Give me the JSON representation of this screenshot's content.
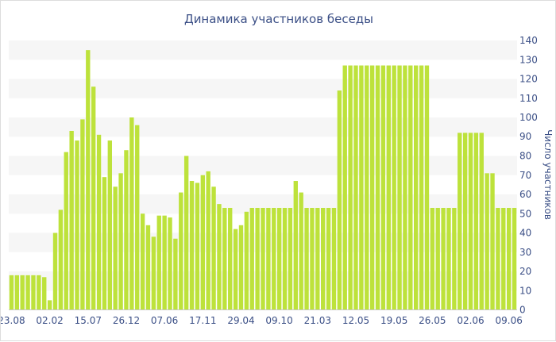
{
  "chart_data": {
    "type": "bar",
    "title": "Динамика участников беседы",
    "ylabel": "Число участников",
    "xlabel": "",
    "y_axis_side": "right",
    "ylim": [
      0,
      140
    ],
    "yticks": [
      0,
      10,
      20,
      30,
      40,
      50,
      60,
      70,
      80,
      90,
      100,
      110,
      120,
      130,
      140
    ],
    "grid": "alternating horizontal bands",
    "bar_color": "#bde23b",
    "band_color": "#f6f6f6",
    "text_color": "#3b4f86",
    "x_tick_labels": [
      {
        "label": "23.08",
        "index": 0
      },
      {
        "label": "02.02",
        "index": 7
      },
      {
        "label": "15.07",
        "index": 14
      },
      {
        "label": "26.12",
        "index": 21
      },
      {
        "label": "07.06",
        "index": 28
      },
      {
        "label": "17.11",
        "index": 35
      },
      {
        "label": "29.04",
        "index": 42
      },
      {
        "label": "09.10",
        "index": 49
      },
      {
        "label": "21.03",
        "index": 56
      },
      {
        "label": "12.05",
        "index": 63
      },
      {
        "label": "19.05",
        "index": 70
      },
      {
        "label": "26.05",
        "index": 77
      },
      {
        "label": "02.06",
        "index": 84
      },
      {
        "label": "09.06",
        "index": 91
      }
    ],
    "values": [
      18,
      18,
      18,
      18,
      18,
      18,
      17,
      5,
      40,
      52,
      82,
      93,
      88,
      99,
      135,
      116,
      91,
      69,
      88,
      64,
      71,
      83,
      100,
      96,
      50,
      44,
      38,
      49,
      49,
      48,
      37,
      61,
      80,
      67,
      66,
      70,
      72,
      64,
      55,
      53,
      53,
      42,
      44,
      51,
      53,
      53,
      53,
      53,
      53,
      53,
      53,
      53,
      67,
      61,
      53,
      53,
      53,
      53,
      53,
      53,
      114,
      127,
      127,
      127,
      127,
      127,
      127,
      127,
      127,
      127,
      127,
      127,
      127,
      127,
      127,
      127,
      127,
      53,
      53,
      53,
      53,
      53,
      92,
      92,
      92,
      92,
      92,
      71,
      71,
      53,
      53,
      53,
      53
    ]
  }
}
